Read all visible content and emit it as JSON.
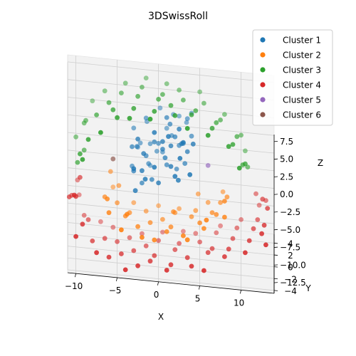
{
  "chart_data": {
    "type": "scatter",
    "projection": "3d",
    "title": "3DSwissRoll",
    "xlabel": "X",
    "ylabel": "Y",
    "zlabel": "Z",
    "xlim": [
      -11,
      14
    ],
    "ylim": [
      -4.5,
      5.5
    ],
    "zlim": [
      -14,
      8.5
    ],
    "x_ticks": [
      -10,
      -5,
      0,
      5,
      10
    ],
    "y_ticks": [
      -4,
      -2,
      0,
      2,
      4
    ],
    "z_ticks": [
      -12.5,
      -10.0,
      -7.5,
      -5.0,
      -2.5,
      0.0,
      2.5,
      5.0,
      7.5
    ],
    "x_tick_labels": [
      "−10",
      "−5",
      "0",
      "5",
      "10"
    ],
    "y_tick_labels": [
      "−4",
      "−2",
      "0",
      "2",
      "4"
    ],
    "z_tick_labels": [
      "−12.5",
      "−10.0",
      "−7.5",
      "−5.0",
      "−2.5",
      "0.0",
      "2.5",
      "5.0",
      "7.5"
    ],
    "grid": true,
    "legend_position": "upper-right",
    "series": [
      {
        "name": "Cluster 1",
        "color": "#1f77b4",
        "points": [
          [
            -2.0,
            -1.5,
            -1.0
          ],
          [
            -1.5,
            0.5,
            -0.5
          ],
          [
            -1.0,
            2.0,
            0.0
          ],
          [
            -0.5,
            -2.5,
            0.5
          ],
          [
            0.0,
            1.0,
            1.0
          ],
          [
            0.5,
            -0.5,
            1.5
          ],
          [
            1.0,
            2.5,
            2.0
          ],
          [
            1.5,
            -1.0,
            2.5
          ],
          [
            2.0,
            0.0,
            3.0
          ],
          [
            2.5,
            3.0,
            3.5
          ],
          [
            3.0,
            -2.0,
            4.0
          ],
          [
            3.5,
            1.5,
            4.5
          ],
          [
            -2.5,
            3.0,
            -1.5
          ],
          [
            -3.0,
            -0.5,
            -2.0
          ],
          [
            -3.2,
            1.5,
            -3.0
          ],
          [
            -2.8,
            -2.0,
            -3.5
          ],
          [
            -2.0,
            0.0,
            -4.0
          ],
          [
            -1.0,
            2.5,
            -3.5
          ],
          [
            0.0,
            -1.5,
            -2.5
          ],
          [
            1.0,
            0.5,
            -1.5
          ],
          [
            2.0,
            -2.5,
            -0.5
          ],
          [
            3.0,
            2.0,
            0.5
          ],
          [
            3.5,
            -0.5,
            1.5
          ],
          [
            4.0,
            1.0,
            2.5
          ],
          [
            4.2,
            -1.5,
            3.5
          ],
          [
            4.0,
            2.5,
            4.5
          ],
          [
            2.5,
            -1.0,
            5.0
          ],
          [
            1.0,
            0.5,
            5.2
          ],
          [
            -0.5,
            -2.0,
            5.0
          ],
          [
            -1.5,
            1.5,
            4.0
          ],
          [
            -2.5,
            -1.0,
            3.0
          ],
          [
            -3.0,
            2.0,
            2.0
          ],
          [
            -3.2,
            0.0,
            1.0
          ],
          [
            -3.0,
            -2.5,
            0.0
          ],
          [
            -1.2,
            1.0,
            -2.0
          ],
          [
            0.5,
            2.0,
            -1.0
          ],
          [
            1.5,
            -1.5,
            0.0
          ],
          [
            2.5,
            1.0,
            1.0
          ],
          [
            -0.5,
            0.0,
            2.0
          ],
          [
            0.5,
            -1.0,
            3.0
          ],
          [
            1.8,
            2.8,
            3.8
          ],
          [
            2.8,
            -0.8,
            2.8
          ],
          [
            3.2,
            0.2,
            -0.8
          ],
          [
            -1.8,
            -1.2,
            1.2
          ],
          [
            -2.2,
            2.2,
            -0.2
          ],
          [
            0.2,
            3.2,
            4.2
          ],
          [
            1.2,
            -2.2,
            4.8
          ],
          [
            2.2,
            0.8,
            -2.2
          ],
          [
            3.8,
            -2.8,
            0.2
          ],
          [
            -0.8,
            -0.2,
            -3.2
          ],
          [
            1.6,
            1.6,
            1.8
          ],
          [
            2.6,
            -2.6,
            2.2
          ],
          [
            -1.4,
            2.6,
            2.6
          ],
          [
            0.8,
            -0.6,
            0.4
          ],
          [
            -2.6,
            0.6,
            0.6
          ],
          [
            3.4,
            2.4,
            3.2
          ],
          [
            -0.2,
            1.8,
            -0.8
          ],
          [
            2.4,
            -1.8,
            -1.6
          ],
          [
            1.4,
            0.4,
            4.4
          ],
          [
            -1.6,
            -2.4,
            -1.4
          ]
        ]
      },
      {
        "name": "Cluster 2",
        "color": "#ff7f0e",
        "points": [
          [
            -6.0,
            -2.0,
            -7.0
          ],
          [
            -5.0,
            1.0,
            -8.0
          ],
          [
            -4.0,
            -0.5,
            -8.5
          ],
          [
            -3.0,
            2.5,
            -9.0
          ],
          [
            -2.0,
            -3.0,
            -9.2
          ],
          [
            -1.0,
            0.0,
            -9.5
          ],
          [
            0.0,
            3.0,
            -9.5
          ],
          [
            1.0,
            -1.5,
            -9.3
          ],
          [
            2.0,
            1.5,
            -9.0
          ],
          [
            3.0,
            -2.5,
            -8.8
          ],
          [
            4.0,
            0.5,
            -8.5
          ],
          [
            5.0,
            -1.0,
            -8.0
          ],
          [
            6.0,
            2.0,
            -7.5
          ],
          [
            7.0,
            -0.5,
            -7.0
          ],
          [
            7.5,
            1.0,
            -6.5
          ],
          [
            8.0,
            -2.0,
            -6.0
          ],
          [
            -5.5,
            3.0,
            -7.5
          ],
          [
            -4.5,
            -3.5,
            -8.0
          ],
          [
            -3.5,
            0.5,
            -8.8
          ],
          [
            -2.5,
            -1.0,
            -9.4
          ],
          [
            -1.5,
            2.0,
            -9.6
          ],
          [
            -0.5,
            -2.5,
            -9.8
          ],
          [
            0.5,
            1.0,
            -9.7
          ],
          [
            1.5,
            -0.5,
            -9.4
          ],
          [
            2.5,
            2.5,
            -9.2
          ],
          [
            3.5,
            -3.0,
            -8.9
          ],
          [
            4.5,
            1.5,
            -8.4
          ],
          [
            5.5,
            -2.0,
            -7.9
          ],
          [
            6.5,
            0.0,
            -7.2
          ],
          [
            7.8,
            2.5,
            -6.2
          ],
          [
            -6.5,
            0.0,
            -6.5
          ],
          [
            -6.2,
            -1.5,
            -5.5
          ],
          [
            -5.8,
            2.0,
            -4.5
          ],
          [
            8.3,
            0.5,
            -5.2
          ],
          [
            8.0,
            -1.2,
            -4.4
          ],
          [
            -4.8,
            1.8,
            -6.2
          ],
          [
            -3.8,
            -2.2,
            -6.8
          ],
          [
            4.8,
            2.2,
            -6.6
          ],
          [
            5.8,
            -2.8,
            -6.0
          ],
          [
            1.8,
            0.2,
            -7.8
          ]
        ]
      },
      {
        "name": "Cluster 3",
        "color": "#2ca02c",
        "points": [
          [
            -9.0,
            1.0,
            -1.0
          ],
          [
            -9.5,
            -1.5,
            0.5
          ],
          [
            -9.0,
            2.0,
            2.0
          ],
          [
            -8.5,
            -2.5,
            3.5
          ],
          [
            -7.5,
            0.0,
            5.0
          ],
          [
            -6.5,
            3.0,
            6.0
          ],
          [
            -5.5,
            -1.0,
            6.8
          ],
          [
            -4.5,
            1.5,
            7.2
          ],
          [
            -3.5,
            -3.0,
            7.5
          ],
          [
            -2.5,
            0.5,
            7.8
          ],
          [
            -1.5,
            3.5,
            8.0
          ],
          [
            -0.5,
            -2.0,
            8.0
          ],
          [
            0.5,
            1.0,
            8.0
          ],
          [
            1.5,
            -0.5,
            7.8
          ],
          [
            2.5,
            2.5,
            7.6
          ],
          [
            3.5,
            -3.5,
            7.3
          ],
          [
            4.5,
            0.0,
            7.0
          ],
          [
            5.5,
            2.0,
            6.5
          ],
          [
            6.5,
            -1.5,
            6.0
          ],
          [
            7.5,
            1.0,
            5.2
          ],
          [
            8.5,
            -2.5,
            4.5
          ],
          [
            9.5,
            0.5,
            3.5
          ],
          [
            10.0,
            2.0,
            2.5
          ],
          [
            10.5,
            -1.0,
            1.0
          ],
          [
            10.5,
            3.0,
            -0.5
          ],
          [
            -8.0,
            3.5,
            4.0
          ],
          [
            -7.0,
            -3.5,
            5.5
          ],
          [
            -6.0,
            0.5,
            6.5
          ],
          [
            -5.0,
            -2.5,
            7.0
          ],
          [
            -4.0,
            3.0,
            7.4
          ],
          [
            -3.0,
            -1.5,
            7.7
          ],
          [
            -2.0,
            2.0,
            7.9
          ],
          [
            -1.0,
            -3.5,
            8.1
          ],
          [
            0.0,
            0.0,
            8.1
          ],
          [
            1.0,
            3.0,
            7.9
          ],
          [
            2.0,
            -2.0,
            7.7
          ],
          [
            3.0,
            1.0,
            7.5
          ],
          [
            4.0,
            -1.0,
            7.2
          ],
          [
            5.0,
            3.5,
            6.8
          ],
          [
            6.0,
            -3.0,
            6.2
          ],
          [
            7.0,
            0.0,
            5.6
          ],
          [
            8.0,
            2.5,
            4.8
          ],
          [
            9.0,
            -1.5,
            4.0
          ],
          [
            -9.8,
            0.0,
            -2.0
          ],
          [
            -10.0,
            2.5,
            -0.5
          ],
          [
            -9.2,
            -3.0,
            1.0
          ],
          [
            -8.8,
            1.5,
            2.8
          ],
          [
            9.8,
            -3.0,
            2.0
          ],
          [
            10.2,
            0.0,
            0.0
          ],
          [
            10.8,
            1.5,
            -1.5
          ]
        ]
      },
      {
        "name": "Cluster 4",
        "color": "#d62728",
        "points": [
          [
            -10.0,
            -1.0,
            -6.0
          ],
          [
            -10.5,
            1.5,
            -8.0
          ],
          [
            -10.0,
            -3.0,
            -10.0
          ],
          [
            -9.0,
            2.5,
            -11.5
          ],
          [
            -8.0,
            -0.5,
            -12.5
          ],
          [
            -7.0,
            3.5,
            -13.0
          ],
          [
            -6.0,
            -2.0,
            -13.3
          ],
          [
            -5.0,
            1.0,
            -13.5
          ],
          [
            -4.0,
            -3.5,
            -13.6
          ],
          [
            -3.0,
            0.0,
            -13.7
          ],
          [
            -2.0,
            3.0,
            -13.7
          ],
          [
            -1.0,
            -1.5,
            -13.7
          ],
          [
            0.0,
            2.0,
            -13.6
          ],
          [
            1.0,
            -3.0,
            -13.5
          ],
          [
            2.0,
            0.5,
            -13.4
          ],
          [
            3.0,
            3.5,
            -13.2
          ],
          [
            4.0,
            -2.5,
            -13.0
          ],
          [
            5.0,
            1.5,
            -12.8
          ],
          [
            6.0,
            -0.5,
            -12.5
          ],
          [
            7.0,
            2.5,
            -12.1
          ],
          [
            8.0,
            -2.0,
            -11.6
          ],
          [
            9.0,
            0.5,
            -11.0
          ],
          [
            10.0,
            3.0,
            -10.3
          ],
          [
            11.0,
            -1.5,
            -9.4
          ],
          [
            12.0,
            1.0,
            -8.4
          ],
          [
            12.5,
            -2.5,
            -7.4
          ],
          [
            13.0,
            2.0,
            -6.4
          ],
          [
            13.2,
            -0.5,
            -5.4
          ],
          [
            -9.5,
            0.5,
            -4.5
          ],
          [
            -9.8,
            3.0,
            -7.0
          ],
          [
            -9.2,
            -2.0,
            -9.0
          ],
          [
            -8.5,
            1.0,
            -10.8
          ],
          [
            -7.5,
            -3.0,
            -12.0
          ],
          [
            -6.5,
            0.5,
            -12.8
          ],
          [
            -5.5,
            3.0,
            -13.2
          ],
          [
            -4.5,
            -1.0,
            -13.5
          ],
          [
            -3.5,
            2.0,
            -13.6
          ],
          [
            -2.5,
            -2.5,
            -13.7
          ],
          [
            -1.5,
            1.0,
            -13.7
          ],
          [
            -0.5,
            -0.5,
            -13.7
          ],
          [
            0.5,
            3.5,
            -13.6
          ],
          [
            1.5,
            -2.0,
            -13.5
          ],
          [
            2.5,
            1.5,
            -13.3
          ],
          [
            3.5,
            -1.0,
            -13.1
          ],
          [
            4.5,
            3.0,
            -12.9
          ],
          [
            5.5,
            -3.5,
            -12.6
          ],
          [
            6.5,
            0.0,
            -12.3
          ],
          [
            7.5,
            3.5,
            -11.9
          ],
          [
            8.5,
            -1.0,
            -11.3
          ],
          [
            9.5,
            2.0,
            -10.7
          ],
          [
            10.5,
            -3.0,
            -9.9
          ],
          [
            11.5,
            0.0,
            -8.9
          ],
          [
            12.2,
            3.0,
            -8.0
          ],
          [
            12.8,
            -1.5,
            -7.0
          ],
          [
            -10.2,
            -2.0,
            -5.0
          ],
          [
            -10.8,
            0.0,
            -7.0
          ],
          [
            -9.6,
            3.5,
            -9.5
          ],
          [
            11.8,
            2.5,
            -6.0
          ],
          [
            12.6,
            0.5,
            -5.0
          ],
          [
            13.0,
            -3.0,
            -8.5
          ]
        ]
      },
      {
        "name": "Cluster 5",
        "color": "#9467bd",
        "points": [
          [
            6.0,
            0.5,
            -1.0
          ]
        ]
      },
      {
        "name": "Cluster 6",
        "color": "#8c564b",
        "points": [
          [
            -5.5,
            0.0,
            -1.0
          ]
        ]
      }
    ]
  }
}
